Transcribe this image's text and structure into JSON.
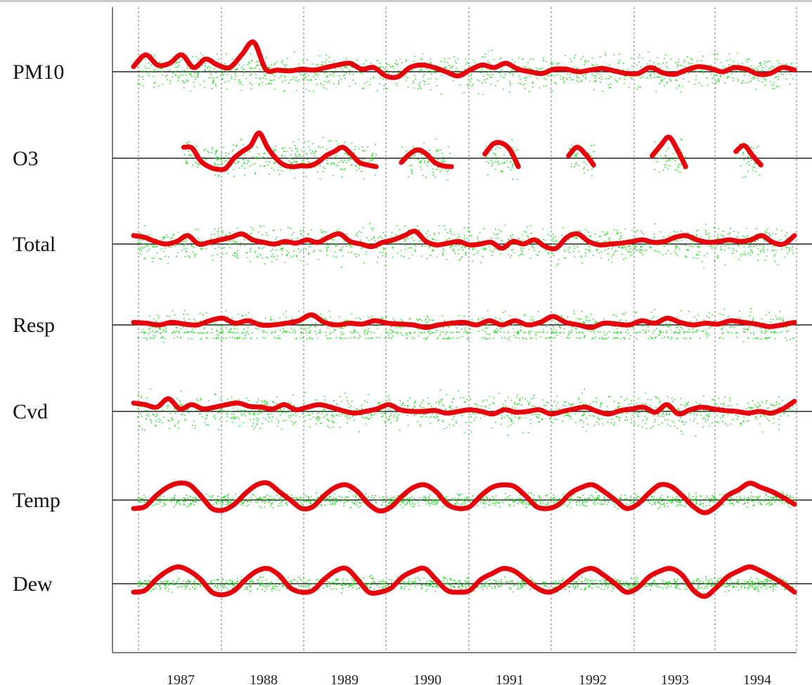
{
  "chart_data": {
    "type": "line",
    "title": "",
    "xlabel": "",
    "ylabel": "",
    "x_tick_labels": [
      "1987",
      "1988",
      "1989",
      "1990",
      "1991",
      "1992",
      "1993",
      "1994"
    ],
    "grid": true,
    "legend": "none",
    "colors": {
      "smooth": "#e8000b",
      "raw": "#22dd22",
      "baseline": "#222222",
      "grid": "#7a7a7a"
    },
    "series": [
      {
        "name": "PM10",
        "smooth": [
          0.6,
          2,
          0.8,
          1,
          2,
          0.5,
          1.5,
          0.8,
          0.5,
          2,
          3.5,
          0.3,
          0.2,
          0.1,
          0.3,
          0.2,
          0.5,
          0.8,
          1,
          0.3,
          0.5,
          -0.5,
          -0.6,
          0.5,
          0.8,
          0.5,
          0,
          -0.5,
          0.2,
          0.8,
          0.5,
          1,
          0.3,
          0,
          -0.2,
          0.3,
          0.3,
          0,
          0.2,
          0.4,
          0.1,
          -0.2,
          -0.2,
          0.5,
          -0.1,
          -0.3,
          0.2,
          0.6,
          0.4,
          0,
          0.5,
          0.3,
          -0.3,
          -0.2,
          0.5,
          0.2
        ]
      },
      {
        "name": "O3",
        "segments": [
          {
            "start": 6,
            "values": [
              1.3,
              1.2,
              -0.3,
              -1,
              -1.3,
              -1.2,
              0,
              0.8,
              1.5,
              3,
              1.3,
              0,
              -0.8,
              -1,
              -0.9,
              -0.9,
              -0.5,
              0.3,
              0.8,
              1.3,
              0.5,
              -0.5,
              -0.8,
              -1
            ]
          },
          {
            "start": 32,
            "values": [
              -0.5,
              0.5,
              1,
              0.5,
              -0.5,
              -0.9,
              -1
            ]
          },
          {
            "start": 42,
            "values": [
              0.5,
              1.7,
              1.8,
              1,
              -1
            ]
          },
          {
            "start": 52,
            "values": [
              0.3,
              1.3,
              0.5,
              -0.8
            ]
          },
          {
            "start": 62,
            "values": [
              0.3,
              1.5,
              2.5,
              1,
              -1
            ]
          },
          {
            "start": 72,
            "values": [
              0.8,
              1.5,
              0.3,
              -0.8
            ]
          }
        ]
      },
      {
        "name": "Total",
        "smooth": [
          1,
          0.8,
          0.3,
          0,
          0.3,
          1,
          0,
          0.2,
          0.5,
          0.8,
          1.2,
          0.5,
          0.2,
          0,
          0.3,
          0.1,
          0.5,
          0.2,
          0.8,
          1.2,
          0.3,
          0,
          -0.3,
          0.2,
          0.5,
          1,
          1.5,
          0.3,
          -0.1,
          0.1,
          0.3,
          -0.1,
          0,
          0.2,
          -0.5,
          0.3,
          0,
          0.5,
          -0.3,
          -0.5,
          0.8,
          1.2,
          0.3,
          -0.1,
          0,
          0.1,
          0.3,
          0.5,
          0.2,
          0.3,
          0.8,
          1,
          0.5,
          0.2,
          0.3,
          0.5,
          0.3,
          0.5,
          1,
          0.2,
          0,
          1
        ]
      },
      {
        "name": "Resp",
        "smooth": [
          0.3,
          0.2,
          0,
          0.3,
          0.1,
          0,
          0.5,
          0.8,
          0.2,
          0.5,
          0,
          0,
          0.2,
          0.5,
          1.2,
          0.3,
          0,
          0.2,
          0.1,
          0.5,
          0.2,
          0.1,
          0,
          -0.3,
          0,
          0.2,
          0.3,
          0,
          0.5,
          0,
          0.5,
          0,
          0.3,
          1,
          0.3,
          0,
          -0.3,
          0.2,
          0.1,
          0,
          0.5,
          0.2,
          0.8,
          0.3,
          0,
          0.2,
          0.1,
          0.5,
          0.3,
          0.1,
          -0.2,
          0,
          0.3
        ]
      },
      {
        "name": "Cvd",
        "smooth": [
          1,
          0.8,
          0.5,
          1.5,
          0.3,
          0.8,
          0.3,
          0.5,
          0.8,
          1,
          0.6,
          0.5,
          0.3,
          0.8,
          0.2,
          0.5,
          0.8,
          0.5,
          0.1,
          -0.2,
          0,
          0.3,
          0.8,
          0.2,
          0,
          0,
          0.1,
          -0.2,
          0,
          0.2,
          0,
          -0.3,
          0.2,
          -0.1,
          0,
          0.2,
          -0.3,
          0,
          0.3,
          0.5,
          0,
          -0.3,
          0.1,
          0.3,
          0.5,
          -0.1,
          0.8,
          -0.3,
          0.2,
          0.5,
          0.3,
          0.1,
          0,
          -0.2,
          0,
          -0.2,
          0.3,
          1.2
        ]
      },
      {
        "name": "Temp",
        "smooth": [
          -1,
          -0.8,
          0.5,
          1.5,
          2,
          1.8,
          0.5,
          -1,
          -1.2,
          -0.5,
          0.8,
          1.8,
          2,
          1,
          0,
          -1,
          -0.8,
          0.5,
          1.5,
          1.8,
          1,
          -0.5,
          -1.3,
          -0.8,
          0.5,
          1.5,
          1.8,
          1,
          -0.5,
          -1,
          -0.8,
          0.5,
          1.5,
          1.8,
          1.6,
          0.5,
          -0.8,
          -1,
          -0.5,
          0.8,
          1.5,
          1.8,
          1,
          0,
          -1,
          -0.5,
          0.8,
          1.8,
          1.6,
          0.5,
          -0.8,
          -1.5,
          -0.8,
          0.5,
          1.2,
          2,
          1.5,
          1,
          0.3,
          -0.5
        ]
      },
      {
        "name": "Dew",
        "smooth": [
          -1,
          -0.8,
          0.5,
          1.5,
          2,
          1.5,
          0.5,
          -1,
          -1.3,
          -0.8,
          0.5,
          1.5,
          1.8,
          1,
          -0.5,
          -1,
          -0.8,
          0.5,
          1.5,
          1.8,
          0.5,
          -1,
          -1,
          -0.5,
          0.8,
          1.5,
          1.8,
          0.5,
          -0.8,
          -1,
          -0.8,
          0.5,
          1.2,
          1.8,
          1.5,
          0.5,
          -0.5,
          -1,
          -0.5,
          0.5,
          1.5,
          1.8,
          1,
          0,
          -1,
          -0.5,
          0.8,
          1.5,
          1.8,
          1,
          -0.8,
          -1.5,
          -0.5,
          0.8,
          1.5,
          2,
          1.5,
          0.8,
          0,
          -1
        ]
      }
    ]
  }
}
